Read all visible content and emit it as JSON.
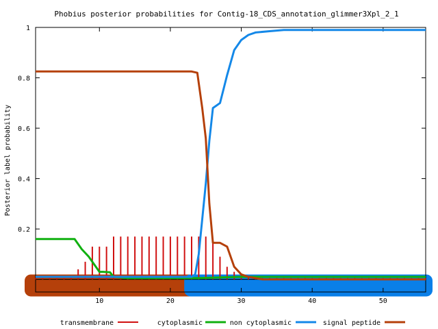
{
  "chart_data": {
    "type": "line",
    "title": "Phobius posterior probabilities for Contig-18_CDS_annotation_glimmer3Xpl_2_1",
    "xlabel": "",
    "ylabel": "Posterior label probability",
    "xlim": [
      1,
      56
    ],
    "ylim": [
      -0.05,
      1
    ],
    "x_ticks": [
      10,
      20,
      30,
      40,
      50
    ],
    "y_ticks": [
      0.2,
      0.4,
      0.6,
      0.8,
      1
    ],
    "y_tick_labels": [
      "0.2",
      "0.4",
      "0.6",
      "0.8",
      "1"
    ],
    "grid": false,
    "legend_position": "bottom",
    "topology_bands": [
      {
        "name": "signal peptide",
        "start": 1,
        "end": 23.5,
        "color": "#b5400a"
      },
      {
        "name": "non cytoplasmic",
        "start": 23.5,
        "end": 56,
        "color": "#0a7fe8"
      }
    ],
    "series": [
      {
        "name": "transmembrane",
        "color": "#d01010",
        "style": "impulses",
        "x": [
          1,
          2,
          3,
          4,
          5,
          6,
          7,
          8,
          9,
          10,
          11,
          12,
          13,
          14,
          15,
          16,
          17,
          18,
          19,
          20,
          21,
          22,
          23,
          24,
          25,
          26,
          27,
          28,
          29,
          30,
          31,
          32,
          33,
          34,
          35,
          36,
          37,
          38,
          39,
          40,
          41,
          42,
          43,
          44,
          45,
          46,
          47,
          48,
          49,
          50,
          51,
          52,
          53,
          54,
          55,
          56
        ],
        "values": [
          0.005,
          0.005,
          0.005,
          0.005,
          0.005,
          0.01,
          0.04,
          0.07,
          0.13,
          0.13,
          0.13,
          0.17,
          0.17,
          0.17,
          0.17,
          0.17,
          0.17,
          0.17,
          0.17,
          0.17,
          0.17,
          0.17,
          0.17,
          0.17,
          0.17,
          0.15,
          0.09,
          0.05,
          0.03,
          0.02,
          0.01,
          0.005,
          0.005,
          0.005,
          0.005,
          0.005,
          0.005,
          0.005,
          0.005,
          0.005,
          0.005,
          0.005,
          0.005,
          0.005,
          0.005,
          0.005,
          0.005,
          0.005,
          0.005,
          0.005,
          0.005,
          0.005,
          0.005,
          0.005,
          0.005,
          0.005
        ]
      },
      {
        "name": "cytoplasmic",
        "color": "#10b010",
        "style": "line",
        "x": [
          1,
          6.5,
          7.5,
          8.5,
          9,
          10,
          10.5,
          11.5,
          12,
          14,
          20,
          22,
          23.5,
          24,
          30,
          56
        ],
        "values": [
          0.16,
          0.16,
          0.12,
          0.09,
          0.07,
          0.03,
          0.03,
          0.028,
          0.01,
          0.005,
          0.005,
          0.005,
          0.005,
          0.005,
          0.01,
          0.01
        ]
      },
      {
        "name": "non cytoplasmic",
        "color": "#1488e8",
        "style": "line",
        "x": [
          1,
          23,
          23.5,
          24,
          25,
          25.5,
          26,
          26.5,
          27,
          28,
          29,
          30,
          31,
          32,
          34,
          36,
          40,
          56
        ],
        "values": [
          0.01,
          0.01,
          0.02,
          0.1,
          0.38,
          0.55,
          0.68,
          0.69,
          0.7,
          0.81,
          0.91,
          0.95,
          0.97,
          0.98,
          0.985,
          0.99,
          0.99,
          0.99
        ]
      },
      {
        "name": "signal peptide",
        "color": "#b5400a",
        "style": "line",
        "x": [
          1,
          23,
          23.8,
          24.5,
          25,
          25.5,
          26,
          27,
          28,
          29,
          30,
          31,
          32,
          33,
          35,
          37,
          40,
          56
        ],
        "values": [
          0.825,
          0.825,
          0.82,
          0.68,
          0.56,
          0.3,
          0.145,
          0.145,
          0.13,
          0.05,
          0.02,
          0.01,
          0.005,
          0.0,
          0.0,
          0.0,
          0.0,
          0.0
        ]
      }
    ]
  }
}
